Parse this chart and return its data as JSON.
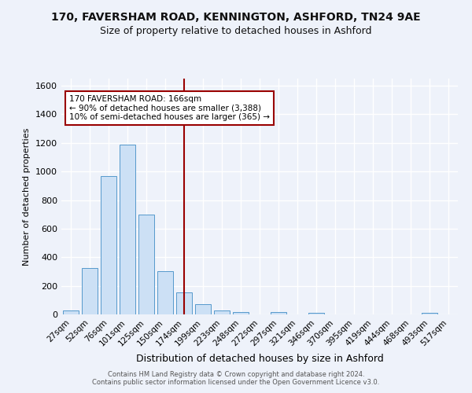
{
  "title": "170, FAVERSHAM ROAD, KENNINGTON, ASHFORD, TN24 9AE",
  "subtitle": "Size of property relative to detached houses in Ashford",
  "xlabel": "Distribution of detached houses by size in Ashford",
  "ylabel": "Number of detached properties",
  "footnote1": "Contains HM Land Registry data © Crown copyright and database right 2024.",
  "footnote2": "Contains public sector information licensed under the Open Government Licence v3.0.",
  "bar_labels": [
    "27sqm",
    "52sqm",
    "76sqm",
    "101sqm",
    "125sqm",
    "150sqm",
    "174sqm",
    "199sqm",
    "223sqm",
    "248sqm",
    "272sqm",
    "297sqm",
    "321sqm",
    "346sqm",
    "370sqm",
    "395sqm",
    "419sqm",
    "444sqm",
    "468sqm",
    "493sqm",
    "517sqm"
  ],
  "bar_values": [
    25,
    325,
    970,
    1190,
    700,
    305,
    155,
    70,
    25,
    15,
    0,
    15,
    0,
    12,
    0,
    0,
    0,
    0,
    0,
    12,
    0
  ],
  "bar_color": "#cce0f5",
  "bar_edge_color": "#5599cc",
  "vline_x": 6,
  "vline_color": "#990000",
  "annotation_line1": "170 FAVERSHAM ROAD: 166sqm",
  "annotation_line2": "← 90% of detached houses are smaller (3,388)",
  "annotation_line3": "10% of semi-detached houses are larger (365) →",
  "ylim": [
    0,
    1650
  ],
  "yticks": [
    0,
    200,
    400,
    600,
    800,
    1000,
    1200,
    1400,
    1600
  ],
  "bg_color": "#eef2fa",
  "grid_color": "#ffffff",
  "title_fontsize": 10,
  "subtitle_fontsize": 9,
  "bar_fontsize": 7.5,
  "ylabel_fontsize": 8,
  "xlabel_fontsize": 9
}
